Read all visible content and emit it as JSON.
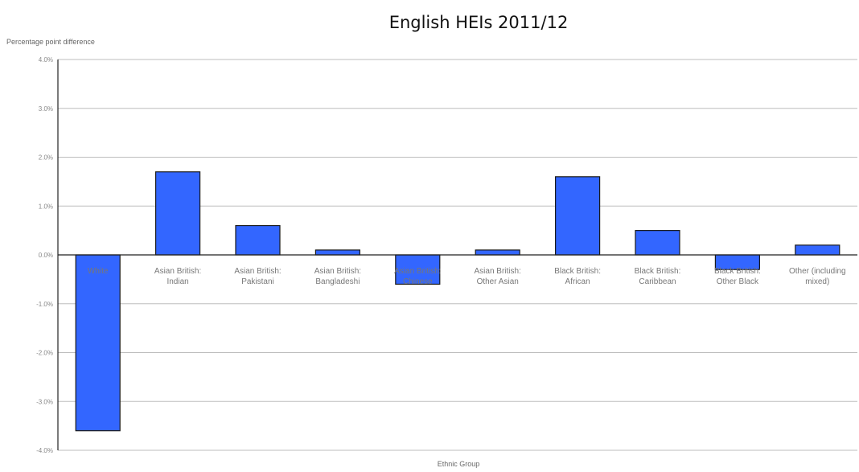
{
  "chart_data": {
    "type": "bar",
    "title": "English HEIs 2011/12",
    "ylabel": "Percentage point difference",
    "xlabel": "Ethnic Group",
    "ylim": [
      -4.0,
      4.0
    ],
    "yticks": [
      4.0,
      3.0,
      2.0,
      1.0,
      0.0,
      -1.0,
      -2.0,
      -3.0,
      -4.0
    ],
    "ytick_labels": [
      "4.0%",
      "3.0%",
      "2.0%",
      "1.0%",
      "0.0%",
      "-1.0%",
      "-2.0%",
      "-3.0%",
      "-4.0%"
    ],
    "categories": [
      [
        "White"
      ],
      [
        "Asian British:",
        "Indian"
      ],
      [
        "Asian British:",
        "Pakistani"
      ],
      [
        "Asian British:",
        "Bangladeshi"
      ],
      [
        "Asian British:",
        "Chinese"
      ],
      [
        "Asian British:",
        "Other Asian"
      ],
      [
        "Black British:",
        "African"
      ],
      [
        "Black British:",
        "Caribbean"
      ],
      [
        "Black British:",
        "Other Black"
      ],
      [
        "Other (including",
        "mixed)"
      ]
    ],
    "values": [
      -3.6,
      1.7,
      0.6,
      0.1,
      -0.6,
      0.1,
      1.6,
      0.5,
      -0.3,
      0.2
    ],
    "bar_color": "#3366ff",
    "grid": true,
    "legend": "none"
  }
}
